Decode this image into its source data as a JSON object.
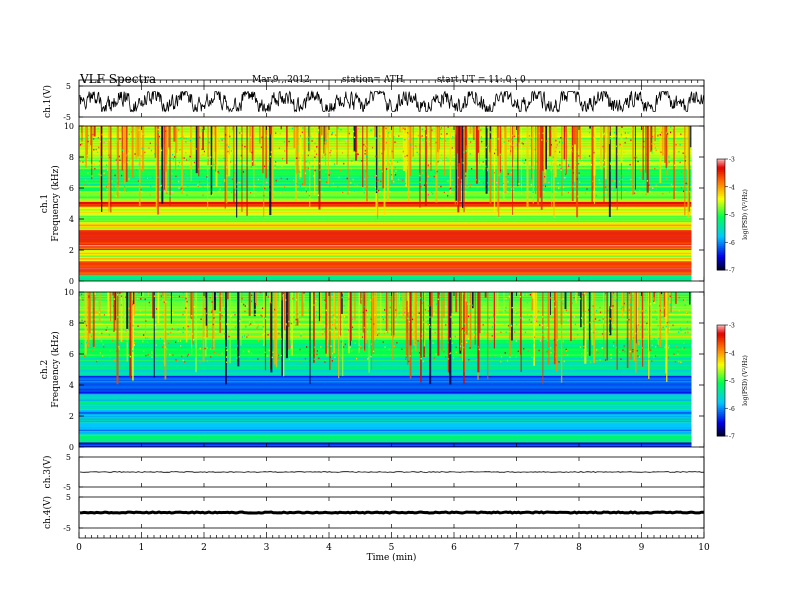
{
  "header": {
    "title": "VLF Spectra",
    "date": "Mar.9 , 2012",
    "station": "station= ATH",
    "start_ut": "start UT = 11: 0 : 0"
  },
  "chart_data": {
    "type": "heatmap",
    "xlabel": "Time (min)",
    "xlim": [
      0,
      10
    ],
    "x_ticks": [
      "0",
      "1",
      "2",
      "3",
      "4",
      "5",
      "6",
      "7",
      "8",
      "9",
      "10"
    ],
    "data_end_min": 9.8,
    "panels": [
      {
        "id": "ch1-waveform",
        "kind": "waveform",
        "ylabel": "ch.1(V)",
        "ylim": [
          -5,
          5
        ],
        "y_ticks": [
          "5",
          "-5"
        ],
        "amplitude": 3.2,
        "color": "#000000"
      },
      {
        "id": "ch1-spectrogram",
        "kind": "spectrogram",
        "ylabel_channel": "ch.1",
        "ylabel": "Frequency (kHz)",
        "ylim": [
          0,
          10
        ],
        "y_ticks": [
          "10",
          "8",
          "6",
          "4",
          "2",
          "0"
        ],
        "colorbar": {
          "label": "log(PSD) (V²/Hz)",
          "range": [
            -7,
            -3
          ],
          "ticks": [
            "-3",
            "-4",
            "-5",
            "-6",
            "-7"
          ]
        },
        "bands_kHz": [
          {
            "from": 0,
            "to": 0.4,
            "level": -5.2
          },
          {
            "from": 0.4,
            "to": 1.3,
            "level": -3.6
          },
          {
            "from": 1.3,
            "to": 2.0,
            "level": -4.4
          },
          {
            "from": 2.0,
            "to": 3.3,
            "level": -3.5
          },
          {
            "from": 3.3,
            "to": 3.8,
            "level": -4.3
          },
          {
            "from": 3.8,
            "to": 4.3,
            "level": -4.9
          },
          {
            "from": 4.3,
            "to": 4.8,
            "level": -4.5
          },
          {
            "from": 4.8,
            "to": 5.1,
            "level": -3.4
          },
          {
            "from": 5.1,
            "to": 5.8,
            "level": -4.8
          },
          {
            "from": 5.8,
            "to": 6.3,
            "level": -5.1
          },
          {
            "from": 6.3,
            "to": 7.5,
            "level": -5.0
          },
          {
            "from": 7.5,
            "to": 10.0,
            "level": -4.6
          }
        ]
      },
      {
        "id": "ch2-spectrogram",
        "kind": "spectrogram",
        "ylabel_channel": "ch.2",
        "ylabel": "Frequency (kHz)",
        "ylim": [
          0,
          10
        ],
        "y_ticks": [
          "10",
          "8",
          "6",
          "4",
          "2",
          "0"
        ],
        "colorbar": {
          "label": "log(PSD) (V²/Hz)",
          "range": [
            -7,
            -3
          ],
          "ticks": [
            "-3",
            "-4",
            "-5",
            "-6",
            "-7"
          ]
        },
        "bands_kHz": [
          {
            "from": 0,
            "to": 0.3,
            "level": -6.4
          },
          {
            "from": 0.3,
            "to": 0.8,
            "level": -5.2
          },
          {
            "from": 0.8,
            "to": 1.6,
            "level": -5.8
          },
          {
            "from": 1.6,
            "to": 2.4,
            "level": -5.9
          },
          {
            "from": 2.4,
            "to": 3.4,
            "level": -5.6
          },
          {
            "from": 3.4,
            "to": 4.6,
            "level": -6.2
          },
          {
            "from": 4.6,
            "to": 5.8,
            "level": -5.5
          },
          {
            "from": 5.8,
            "to": 7.0,
            "level": -5.1
          },
          {
            "from": 7.0,
            "to": 10.0,
            "level": -4.8
          }
        ]
      },
      {
        "id": "ch3-waveform",
        "kind": "waveform",
        "ylabel": "ch.3(V)",
        "ylim": [
          -5,
          5
        ],
        "y_ticks": [
          "5",
          "-5"
        ],
        "amplitude": 0.25,
        "color": "#000000"
      },
      {
        "id": "ch4-waveform",
        "kind": "waveform",
        "ylabel": "ch.4(V)",
        "ylim": [
          -5,
          5
        ],
        "y_ticks": [
          "5",
          "-5"
        ],
        "amplitude": 0.35,
        "color": "#000000"
      }
    ]
  }
}
